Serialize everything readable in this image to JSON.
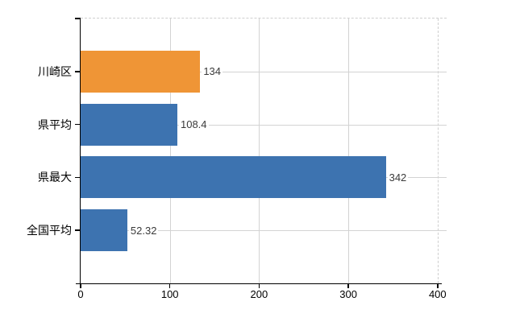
{
  "chart_data": {
    "type": "bar",
    "orientation": "horizontal",
    "title": "",
    "categories": [
      "川崎区",
      "県平均",
      "県最大",
      "全国平均"
    ],
    "values": [
      134,
      108.4,
      342,
      52.32
    ],
    "value_labels": [
      "134",
      "108.4",
      "342",
      "52.32"
    ],
    "bar_colors": [
      "#EF9536",
      "#3D73B0",
      "#3D73B0",
      "#3D73B0"
    ],
    "highlighted_category": "川崎区",
    "x_ticks": [
      0,
      100,
      200,
      300,
      400
    ],
    "x_tick_labels": [
      "0",
      "100",
      "200",
      "300",
      "400"
    ],
    "xlim": [
      0,
      410
    ],
    "grid": true,
    "legend": false
  },
  "colors": {
    "background": "#FFFFFF",
    "gridline": "#D3D3D3",
    "dashed_border": "#CFCFCF",
    "axis": "#000000",
    "value_text": "#3A3A3A",
    "label_text": "#000000",
    "highlight_bar": "#EF9536",
    "normal_bar": "#3D73B0"
  }
}
